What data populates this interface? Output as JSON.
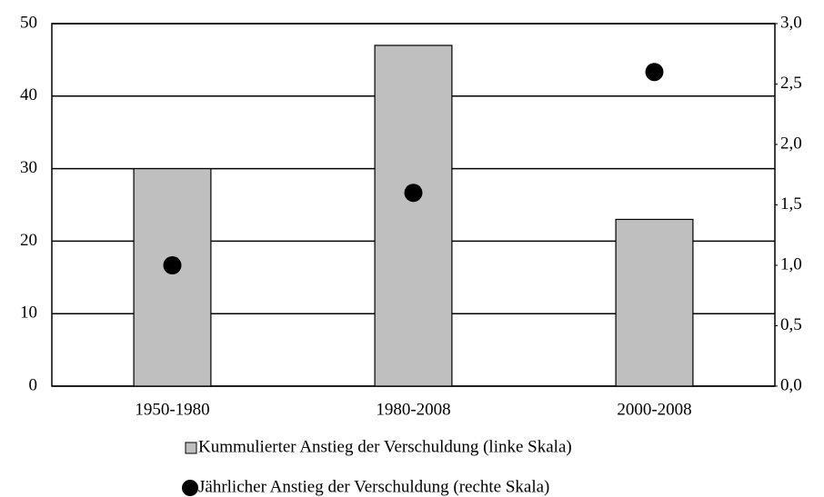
{
  "chart_data": {
    "type": "bar",
    "categories": [
      "1950-1980",
      "1980-2008",
      "2000-2008"
    ],
    "series": [
      {
        "name": "Kummulierter Anstieg der Verschuldung (linke Skala)",
        "type": "bar",
        "color": "#bfbfbf",
        "values": [
          30,
          47,
          23
        ]
      },
      {
        "name": "Jährlicher Anstieg der Verschuldung (rechte Skala)",
        "type": "scatter",
        "axis": "y2",
        "color": "#000000",
        "values": [
          1.0,
          1.6,
          2.6
        ]
      }
    ],
    "ylim": [
      0,
      50
    ],
    "yticks": [
      0,
      10,
      20,
      30,
      40,
      50
    ],
    "y2lim": [
      0,
      3
    ],
    "y2ticks": [
      {
        "value": 0,
        "label": "0,0"
      },
      {
        "value": 0.5,
        "label": "0,5"
      },
      {
        "value": 1,
        "label": "1,0"
      },
      {
        "value": 1.5,
        "label": "1,5"
      },
      {
        "value": 2,
        "label": "2,0"
      },
      {
        "value": 2.5,
        "label": "2,5"
      },
      {
        "value": 3,
        "label": "3,0"
      }
    ],
    "grid": true
  }
}
